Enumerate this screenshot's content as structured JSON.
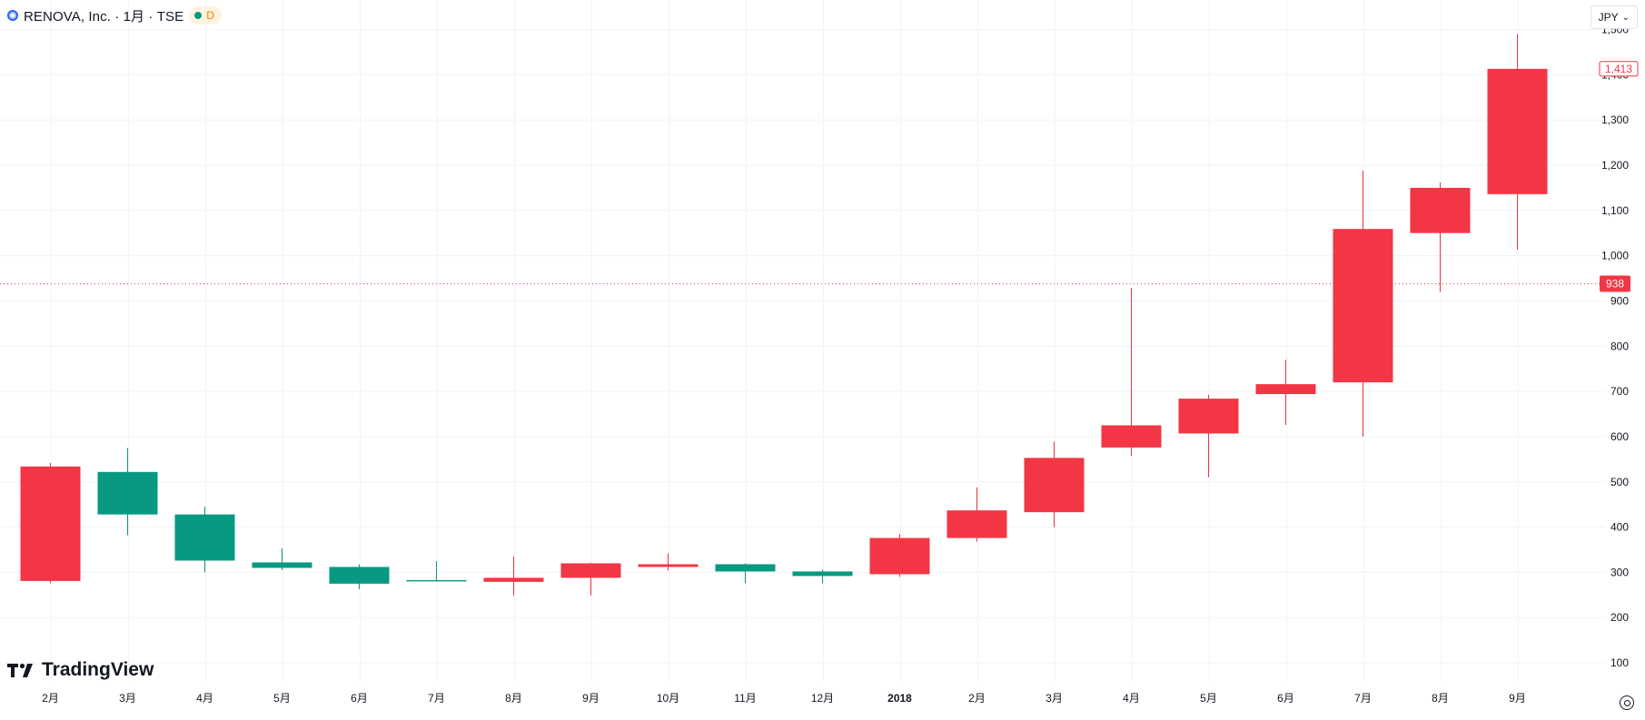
{
  "header": {
    "title": "RENOVA, Inc. · 1月 · TSE",
    "badge_label": "D"
  },
  "currency": {
    "label": "JPY"
  },
  "brand": {
    "name": "TradingView"
  },
  "colors": {
    "up": "#f23645",
    "down": "#089981",
    "grid": "#f0f3fa",
    "text": "#131722",
    "last_price_line": "#f23645"
  },
  "chart_data": {
    "type": "candlestick",
    "x_labels": [
      "2月",
      "3月",
      "4月",
      "5月",
      "6月",
      "7月",
      "8月",
      "9月",
      "10月",
      "11月",
      "12月",
      "2018",
      "2月",
      "3月",
      "4月",
      "5月",
      "6月",
      "7月",
      "8月",
      "9月"
    ],
    "ohlc": [
      {
        "open": 281,
        "high": 542,
        "low": 276,
        "close": 534
      },
      {
        "open": 522,
        "high": 575,
        "low": 382,
        "close": 428
      },
      {
        "open": 428,
        "high": 445,
        "low": 300,
        "close": 326
      },
      {
        "open": 322,
        "high": 353,
        "low": 305,
        "close": 310
      },
      {
        "open": 312,
        "high": 318,
        "low": 263,
        "close": 275
      },
      {
        "open": 283,
        "high": 325,
        "low": 280,
        "close": 280
      },
      {
        "open": 279,
        "high": 335,
        "low": 249,
        "close": 288
      },
      {
        "open": 288,
        "high": 321,
        "low": 249,
        "close": 320
      },
      {
        "open": 312,
        "high": 342,
        "low": 304,
        "close": 318
      },
      {
        "open": 318,
        "high": 320,
        "low": 276,
        "close": 302
      },
      {
        "open": 302,
        "high": 306,
        "low": 276,
        "close": 292
      },
      {
        "open": 296,
        "high": 385,
        "low": 290,
        "close": 376
      },
      {
        "open": 376,
        "high": 488,
        "low": 368,
        "close": 437
      },
      {
        "open": 433,
        "high": 589,
        "low": 400,
        "close": 553
      },
      {
        "open": 576,
        "high": 929,
        "low": 557,
        "close": 625
      },
      {
        "open": 607,
        "high": 693,
        "low": 510,
        "close": 684
      },
      {
        "open": 694,
        "high": 770,
        "low": 626,
        "close": 716
      },
      {
        "open": 720,
        "high": 1188,
        "low": 600,
        "close": 1059
      },
      {
        "open": 1050,
        "high": 1162,
        "low": 920,
        "close": 1150
      },
      {
        "open": 1136,
        "high": 1490,
        "low": 1013,
        "close": 1413
      }
    ],
    "y_ticks": [
      100,
      200,
      300,
      400,
      500,
      600,
      700,
      800,
      900,
      1000,
      1100,
      1200,
      1300,
      1400,
      1500
    ],
    "y_tick_labels": [
      "100",
      "200",
      "300",
      "400",
      "500",
      "600",
      "700",
      "800",
      "900",
      "1,000",
      "1,100",
      "1,200",
      "1,300",
      "1,400",
      "1,500"
    ],
    "ylim": [
      60,
      1525
    ],
    "last_price": 938,
    "last_price_label": "938",
    "last_close_label": "1,413",
    "grid": true
  }
}
